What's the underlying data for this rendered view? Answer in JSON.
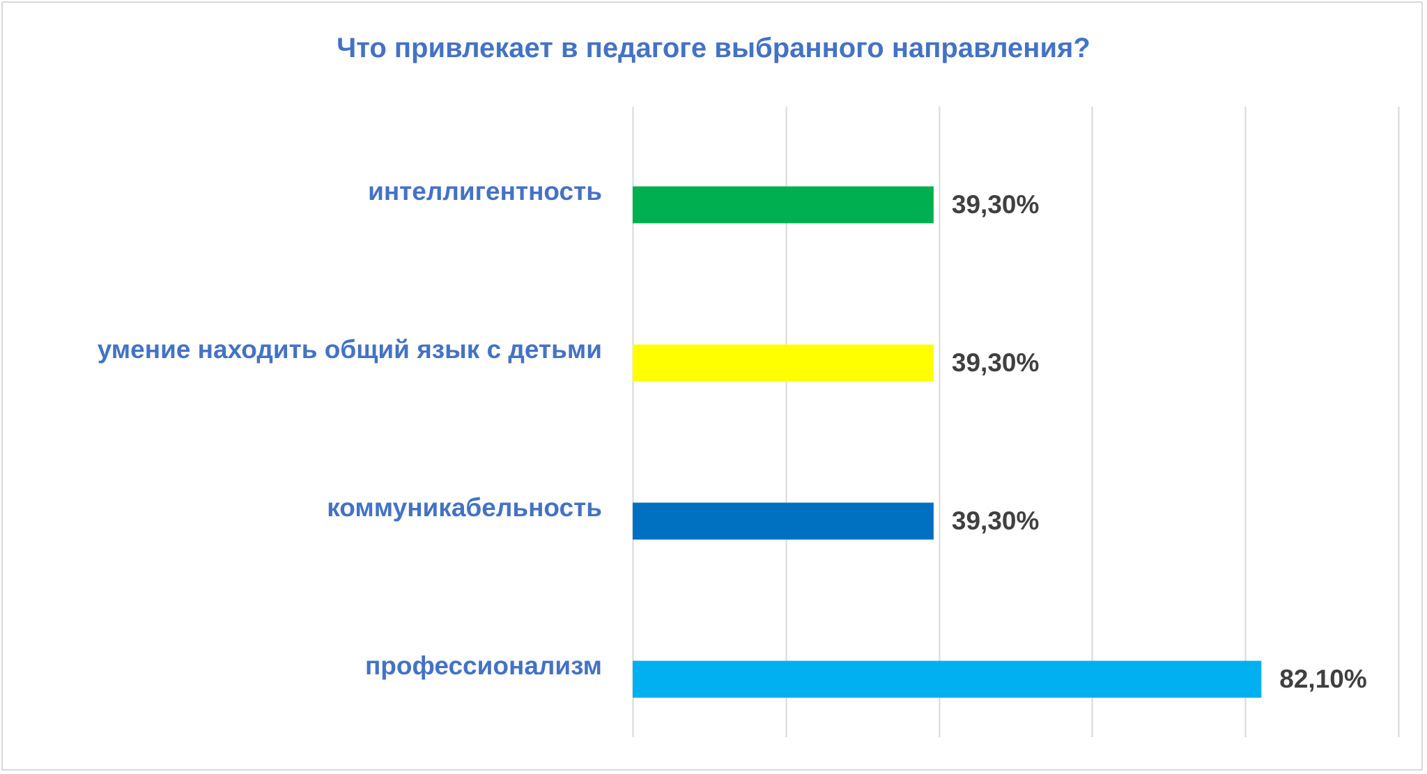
{
  "chart_data": {
    "type": "bar",
    "orientation": "horizontal",
    "title": "Что привлекает в педагоге выбранного направления?",
    "xlabel": "",
    "ylabel": "",
    "xlim": [
      0,
      100
    ],
    "grid": true,
    "legend": "none",
    "categories": [
      "интеллигентность",
      "умение находить общий язык с детьми",
      "коммуникабельность",
      "профессионализм"
    ],
    "values": [
      39.3,
      39.3,
      39.3,
      82.1
    ],
    "value_labels": [
      "39,30%",
      "39,30%",
      "39,30%",
      "82,10%"
    ],
    "bar_colors": [
      "#00b050",
      "#ffff00",
      "#0070c0",
      "#00b0f0"
    ],
    "title_color": "#4472c4",
    "category_label_color": "#4472c4",
    "value_label_color": "#404040",
    "grid_color": "#d9d9d9"
  }
}
